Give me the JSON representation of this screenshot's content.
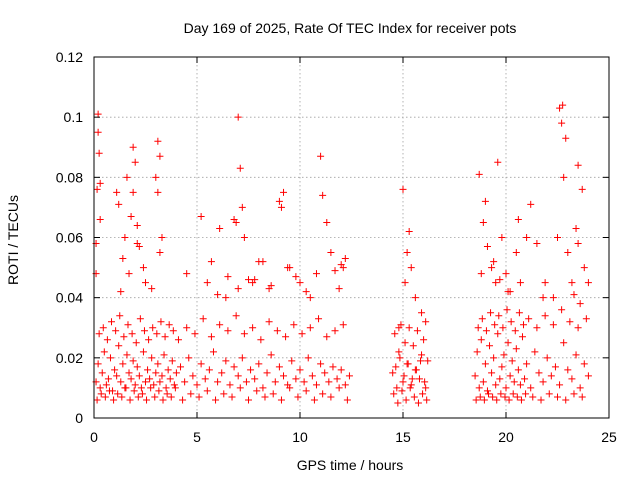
{
  "chart_data": {
    "type": "scatter",
    "title": "Day 169 of 2025, Rate Of TEC Index for receiver pots",
    "xlabel": "GPS time / hours",
    "ylabel": "ROTI / TECUs",
    "xlim": [
      0,
      25
    ],
    "ylim": [
      0,
      0.12
    ],
    "xticks": [
      0,
      5,
      10,
      15,
      20,
      25
    ],
    "xtick_labels": [
      "0",
      "5",
      "10",
      "15",
      "20",
      "25"
    ],
    "yticks": [
      0,
      0.02,
      0.04,
      0.06,
      0.08,
      0.1,
      0.12
    ],
    "ytick_labels": [
      "0",
      "0.02",
      "0.04",
      "0.06",
      "0.08",
      "0.1",
      "0.12"
    ],
    "grid": true,
    "marker": "plus",
    "color": "#ff0000",
    "series": [
      {
        "name": "ROTI",
        "x": [
          0.1,
          0.2,
          0.3,
          0.4,
          0.5,
          0.6,
          0.7,
          0.8,
          0.9,
          1.0,
          1.1,
          1.2,
          1.3,
          1.4,
          1.5,
          1.6,
          1.7,
          1.8,
          1.9,
          2.0,
          2.1,
          2.2,
          2.3,
          2.4,
          2.5,
          2.6,
          2.7,
          2.8,
          2.9,
          3.0,
          3.1,
          3.2,
          3.3,
          3.4,
          3.5,
          3.6,
          3.7,
          3.8,
          3.9,
          4.0,
          4.2,
          4.4,
          4.6,
          4.8,
          5.0,
          5.2,
          5.4,
          5.6,
          5.8,
          6.0,
          6.2,
          6.4,
          6.6,
          6.8,
          7.0,
          7.2,
          7.4,
          7.6,
          7.8,
          8.0,
          8.2,
          8.4,
          8.6,
          8.8,
          9.0,
          9.2,
          9.4,
          9.6,
          9.8,
          10.0,
          10.2,
          10.4,
          10.6,
          10.8,
          11.0,
          11.2,
          11.4,
          11.6,
          11.8,
          12.0,
          12.2,
          12.4,
          0.15,
          0.25,
          0.35,
          0.45,
          0.55,
          0.65,
          0.75,
          0.85,
          0.95,
          1.05,
          1.15,
          1.25,
          1.35,
          1.45,
          1.55,
          1.65,
          1.75,
          1.85,
          1.95,
          2.05,
          2.15,
          2.25,
          2.35,
          2.45,
          2.55,
          2.65,
          2.75,
          2.85,
          2.95,
          3.05,
          3.15,
          3.25,
          3.35,
          3.45,
          3.55,
          3.65,
          3.75,
          3.85,
          3.95,
          4.1,
          4.3,
          4.5,
          4.7,
          4.9,
          5.1,
          5.3,
          5.5,
          5.7,
          5.9,
          6.1,
          6.3,
          6.5,
          6.7,
          6.9,
          7.1,
          7.3,
          7.5,
          7.7,
          7.9,
          8.1,
          8.3,
          8.5,
          8.7,
          8.9,
          9.1,
          9.3,
          9.5,
          9.7,
          9.9,
          10.1,
          10.3,
          10.5,
          10.7,
          10.9,
          11.1,
          11.3,
          11.5,
          11.7,
          11.9,
          12.1,
          12.3,
          0.1,
          0.15,
          0.2,
          0.25,
          0.3,
          1.1,
          1.2,
          1.4,
          1.6,
          1.8,
          1.9,
          2.0,
          2.1,
          2.2,
          2.5,
          3.0,
          3.1,
          3.2,
          3.3,
          4.5,
          5.2,
          5.7,
          6.1,
          6.4,
          6.8,
          7.0,
          7.1,
          7.2,
          7.5,
          7.7,
          8.2,
          8.5,
          9.0,
          9.2,
          9.5,
          10.0,
          10.5,
          11.0,
          11.1,
          11.5,
          11.9,
          12.1,
          12.2,
          0.1,
          0.2,
          0.3,
          1.3,
          1.5,
          1.7,
          1.9,
          2.1,
          2.4,
          2.8,
          3.1,
          3.2,
          5.5,
          6.0,
          6.5,
          6.9,
          7.0,
          7.3,
          7.8,
          8.0,
          8.6,
          9.1,
          9.4,
          9.8,
          10.3,
          10.8,
          11.3,
          11.7,
          12.0,
          14.5,
          14.6,
          14.7,
          14.8,
          14.9,
          15.0,
          15.1,
          15.2,
          15.3,
          15.4,
          15.5,
          15.6,
          15.7,
          15.8,
          15.9,
          16.0,
          16.1,
          16.2,
          14.55,
          14.65,
          14.75,
          14.85,
          14.95,
          15.05,
          15.15,
          15.25,
          15.35,
          15.45,
          15.55,
          15.65,
          15.75,
          15.85,
          15.95,
          16.05,
          16.15,
          14.8,
          15.0,
          15.1,
          15.2,
          15.3,
          15.4,
          15.6,
          15.9,
          16.1,
          18.5,
          18.6,
          18.7,
          18.8,
          18.9,
          19.0,
          19.1,
          19.2,
          19.3,
          19.4,
          19.5,
          19.6,
          19.7,
          19.8,
          19.9,
          20.0,
          20.1,
          20.2,
          20.3,
          20.4,
          20.5,
          20.6,
          20.7,
          20.8,
          20.9,
          21.0,
          21.2,
          21.4,
          21.6,
          21.8,
          22.0,
          22.2,
          22.4,
          22.6,
          22.8,
          23.0,
          23.2,
          23.4,
          23.6,
          23.8,
          24.0,
          18.55,
          18.65,
          18.75,
          18.85,
          18.95,
          19.05,
          19.15,
          19.25,
          19.35,
          19.45,
          19.55,
          19.65,
          19.75,
          19.85,
          19.95,
          20.05,
          20.15,
          20.25,
          20.35,
          20.45,
          20.55,
          20.65,
          20.75,
          20.85,
          20.95,
          21.1,
          21.3,
          21.5,
          21.7,
          21.9,
          22.1,
          22.3,
          22.5,
          22.7,
          22.9,
          23.1,
          23.3,
          23.5,
          23.7,
          23.9,
          18.7,
          18.9,
          19.1,
          19.3,
          19.5,
          19.6,
          19.8,
          20.0,
          20.2,
          20.5,
          20.7,
          21.0,
          21.5,
          21.9,
          22.3,
          22.6,
          22.7,
          22.8,
          23.0,
          23.2,
          23.4,
          23.5,
          23.6,
          23.8,
          24.0,
          18.8,
          19.0,
          19.4,
          19.7,
          20.1,
          20.6,
          21.2,
          21.8,
          22.5,
          22.75,
          22.9,
          23.3,
          23.5,
          23.7
        ],
        "y": [
          0.012,
          0.018,
          0.01,
          0.015,
          0.022,
          0.011,
          0.013,
          0.02,
          0.009,
          0.016,
          0.014,
          0.024,
          0.012,
          0.018,
          0.01,
          0.021,
          0.015,
          0.013,
          0.019,
          0.011,
          0.017,
          0.014,
          0.01,
          0.022,
          0.012,
          0.016,
          0.013,
          0.02,
          0.011,
          0.015,
          0.018,
          0.012,
          0.014,
          0.021,
          0.01,
          0.016,
          0.013,
          0.019,
          0.011,
          0.015,
          0.017,
          0.012,
          0.02,
          0.014,
          0.011,
          0.018,
          0.013,
          0.016,
          0.022,
          0.012,
          0.015,
          0.019,
          0.011,
          0.017,
          0.014,
          0.02,
          0.012,
          0.016,
          0.013,
          0.018,
          0.01,
          0.015,
          0.021,
          0.012,
          0.017,
          0.014,
          0.011,
          0.019,
          0.013,
          0.016,
          0.012,
          0.02,
          0.014,
          0.011,
          0.018,
          0.015,
          0.012,
          0.017,
          0.013,
          0.016,
          0.011,
          0.014,
          0.006,
          0.028,
          0.008,
          0.03,
          0.007,
          0.026,
          0.009,
          0.032,
          0.006,
          0.029,
          0.008,
          0.034,
          0.007,
          0.027,
          0.01,
          0.031,
          0.006,
          0.028,
          0.009,
          0.025,
          0.007,
          0.033,
          0.008,
          0.029,
          0.006,
          0.026,
          0.01,
          0.03,
          0.007,
          0.028,
          0.009,
          0.032,
          0.006,
          0.027,
          0.008,
          0.031,
          0.007,
          0.029,
          0.01,
          0.026,
          0.006,
          0.03,
          0.008,
          0.028,
          0.007,
          0.033,
          0.009,
          0.027,
          0.006,
          0.031,
          0.008,
          0.029,
          0.007,
          0.034,
          0.01,
          0.028,
          0.006,
          0.03,
          0.009,
          0.026,
          0.007,
          0.032,
          0.008,
          0.029,
          0.006,
          0.027,
          0.01,
          0.031,
          0.007,
          0.028,
          0.009,
          0.03,
          0.006,
          0.033,
          0.008,
          0.027,
          0.007,
          0.029,
          0.01,
          0.031,
          0.006,
          0.058,
          0.076,
          0.095,
          0.088,
          0.066,
          0.075,
          0.071,
          0.053,
          0.08,
          0.067,
          0.09,
          0.085,
          0.064,
          0.057,
          0.045,
          0.08,
          0.092,
          0.087,
          0.06,
          0.048,
          0.067,
          0.052,
          0.063,
          0.04,
          0.066,
          0.1,
          0.083,
          0.07,
          0.046,
          0.045,
          0.052,
          0.043,
          0.072,
          0.075,
          0.05,
          0.045,
          0.04,
          0.087,
          0.074,
          0.055,
          0.043,
          0.05,
          0.053,
          0.048,
          0.101,
          0.078,
          0.042,
          0.06,
          0.048,
          0.075,
          0.058,
          0.05,
          0.043,
          0.075,
          0.055,
          0.045,
          0.041,
          0.047,
          0.065,
          0.043,
          0.06,
          0.046,
          0.052,
          0.044,
          0.07,
          0.05,
          0.047,
          0.042,
          0.048,
          0.065,
          0.049,
          0.051,
          0.015,
          0.028,
          0.01,
          0.022,
          0.031,
          0.012,
          0.025,
          0.018,
          0.03,
          0.011,
          0.024,
          0.016,
          0.029,
          0.013,
          0.021,
          0.026,
          0.01,
          0.019,
          0.008,
          0.017,
          0.005,
          0.02,
          0.009,
          0.014,
          0.006,
          0.018,
          0.01,
          0.013,
          0.007,
          0.016,
          0.005,
          0.019,
          0.008,
          0.012,
          0.006,
          0.03,
          0.076,
          0.045,
          0.055,
          0.062,
          0.05,
          0.04,
          0.035,
          0.032,
          0.014,
          0.022,
          0.01,
          0.026,
          0.012,
          0.018,
          0.009,
          0.024,
          0.015,
          0.02,
          0.011,
          0.028,
          0.013,
          0.017,
          0.021,
          0.01,
          0.025,
          0.014,
          0.019,
          0.012,
          0.023,
          0.016,
          0.011,
          0.027,
          0.013,
          0.018,
          0.01,
          0.022,
          0.015,
          0.012,
          0.02,
          0.014,
          0.017,
          0.011,
          0.025,
          0.016,
          0.013,
          0.021,
          0.01,
          0.018,
          0.014,
          0.006,
          0.03,
          0.007,
          0.033,
          0.006,
          0.029,
          0.008,
          0.035,
          0.007,
          0.031,
          0.006,
          0.034,
          0.008,
          0.03,
          0.007,
          0.036,
          0.006,
          0.032,
          0.008,
          0.029,
          0.007,
          0.035,
          0.006,
          0.031,
          0.008,
          0.033,
          0.007,
          0.03,
          0.006,
          0.034,
          0.008,
          0.031,
          0.007,
          0.036,
          0.006,
          0.032,
          0.008,
          0.03,
          0.007,
          0.033,
          0.081,
          0.065,
          0.057,
          0.05,
          0.045,
          0.085,
          0.06,
          0.048,
          0.042,
          0.055,
          0.045,
          0.06,
          0.058,
          0.045,
          0.04,
          0.103,
          0.098,
          0.08,
          0.055,
          0.045,
          0.063,
          0.058,
          0.038,
          0.05,
          0.045,
          0.048,
          0.072,
          0.052,
          0.046,
          0.042,
          0.066,
          0.071,
          0.04,
          0.06,
          0.104,
          0.093,
          0.041,
          0.084,
          0.076
        ]
      }
    ]
  }
}
